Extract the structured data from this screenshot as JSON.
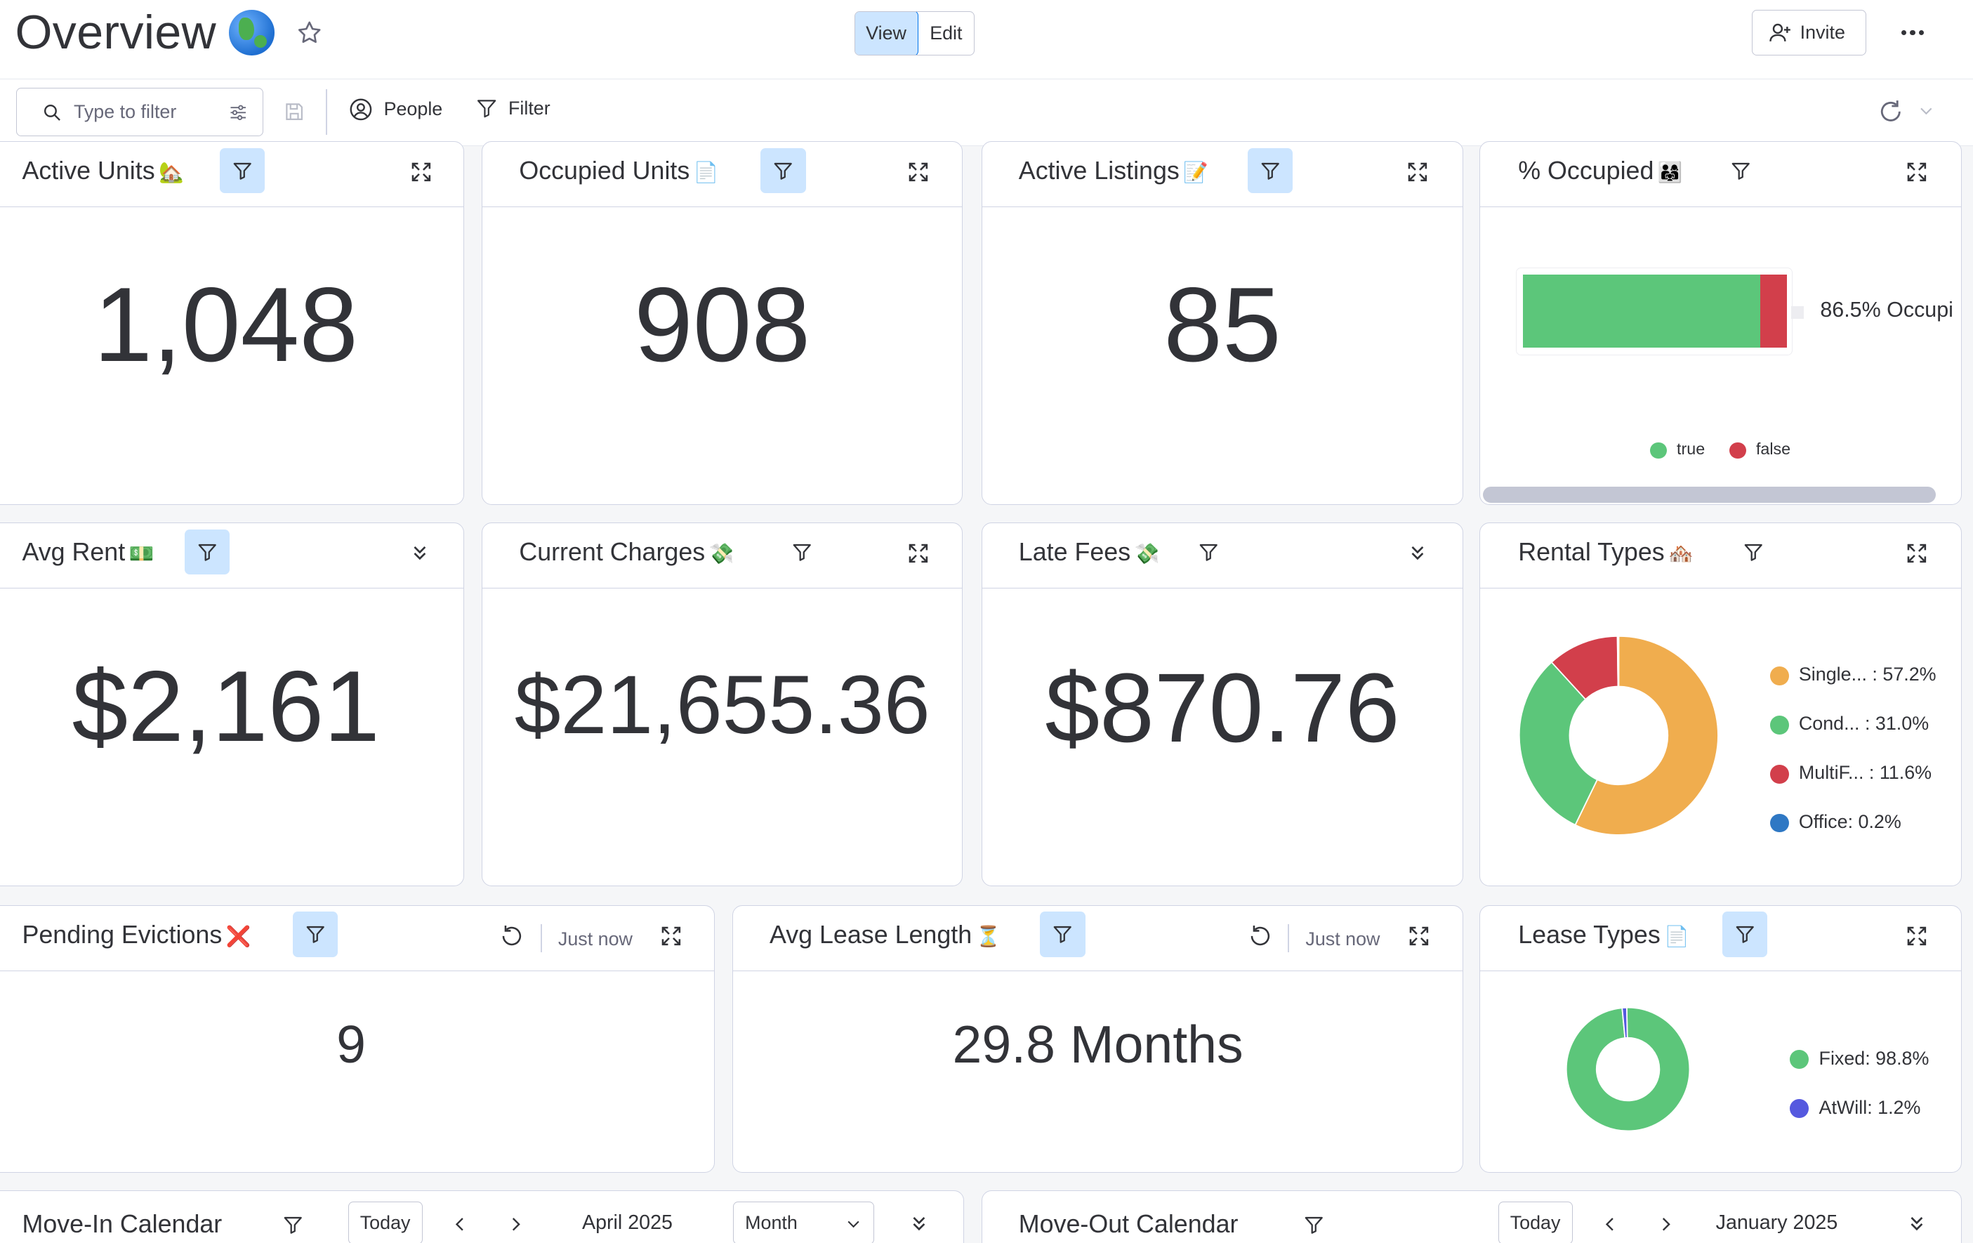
{
  "header": {
    "title": "Overview",
    "view_label": "View",
    "edit_label": "Edit",
    "invite_label": "Invite"
  },
  "toolbar": {
    "search_placeholder": "Type to filter",
    "people_label": "People",
    "filter_label": "Filter"
  },
  "widgets": {
    "active_units": {
      "title": "Active Units",
      "emoji": "🏡",
      "value": "1,048"
    },
    "occupied_units": {
      "title": "Occupied Units",
      "emoji": "📄",
      "value": "908"
    },
    "active_listings": {
      "title": "Active Listings",
      "emoji": "📝",
      "value": "85"
    },
    "pct_occupied": {
      "title": "% Occupied",
      "emoji": "👨‍👩‍👧",
      "label": "86.5% Occupi",
      "true_fraction": 0.9,
      "legend_true": "true",
      "legend_false": "false"
    },
    "avg_rent": {
      "title": "Avg Rent",
      "emoji": "💵",
      "value": "$2,161"
    },
    "current_charges": {
      "title": "Current Charges",
      "emoji": "💸",
      "value": "$21,655.36"
    },
    "late_fees": {
      "title": "Late Fees",
      "emoji": "💸",
      "value": "$870.76"
    },
    "rental_types": {
      "title": "Rental Types",
      "emoji": "🏘️"
    },
    "pending_evictions": {
      "title": "Pending Evictions",
      "emoji": "❌",
      "value": "9",
      "updated": "Just now"
    },
    "avg_lease_length": {
      "title": "Avg Lease Length",
      "emoji": "⏳",
      "value": "29.8 Months",
      "updated": "Just now"
    },
    "lease_types": {
      "title": "Lease Types",
      "emoji": "📄"
    },
    "move_in": {
      "title": "Move-In Calendar",
      "today": "Today",
      "period": "April 2025",
      "mode": "Month"
    },
    "move_out": {
      "title": "Move-Out Calendar",
      "today": "Today",
      "period": "January 2025"
    }
  },
  "chart_data": [
    {
      "type": "pie",
      "categories": [
        "Single...",
        "Cond...",
        "MultiF...",
        "Office"
      ],
      "values": [
        57.2,
        31.0,
        11.6,
        0.2
      ],
      "labels": [
        "Single... : 57.2%",
        "Cond... : 31.0%",
        "MultiF... : 11.6%",
        "Office: 0.2%"
      ],
      "colors": [
        "#f0ad4e",
        "#5cc67a",
        "#d23f4b",
        "#2f78c4"
      ]
    },
    {
      "type": "pie",
      "categories": [
        "Fixed",
        "AtWill"
      ],
      "values": [
        98.8,
        1.2
      ],
      "labels": [
        "Fixed: 98.8%",
        "AtWill: 1.2%"
      ],
      "colors": [
        "#5cc67a",
        "#5559df"
      ]
    }
  ]
}
